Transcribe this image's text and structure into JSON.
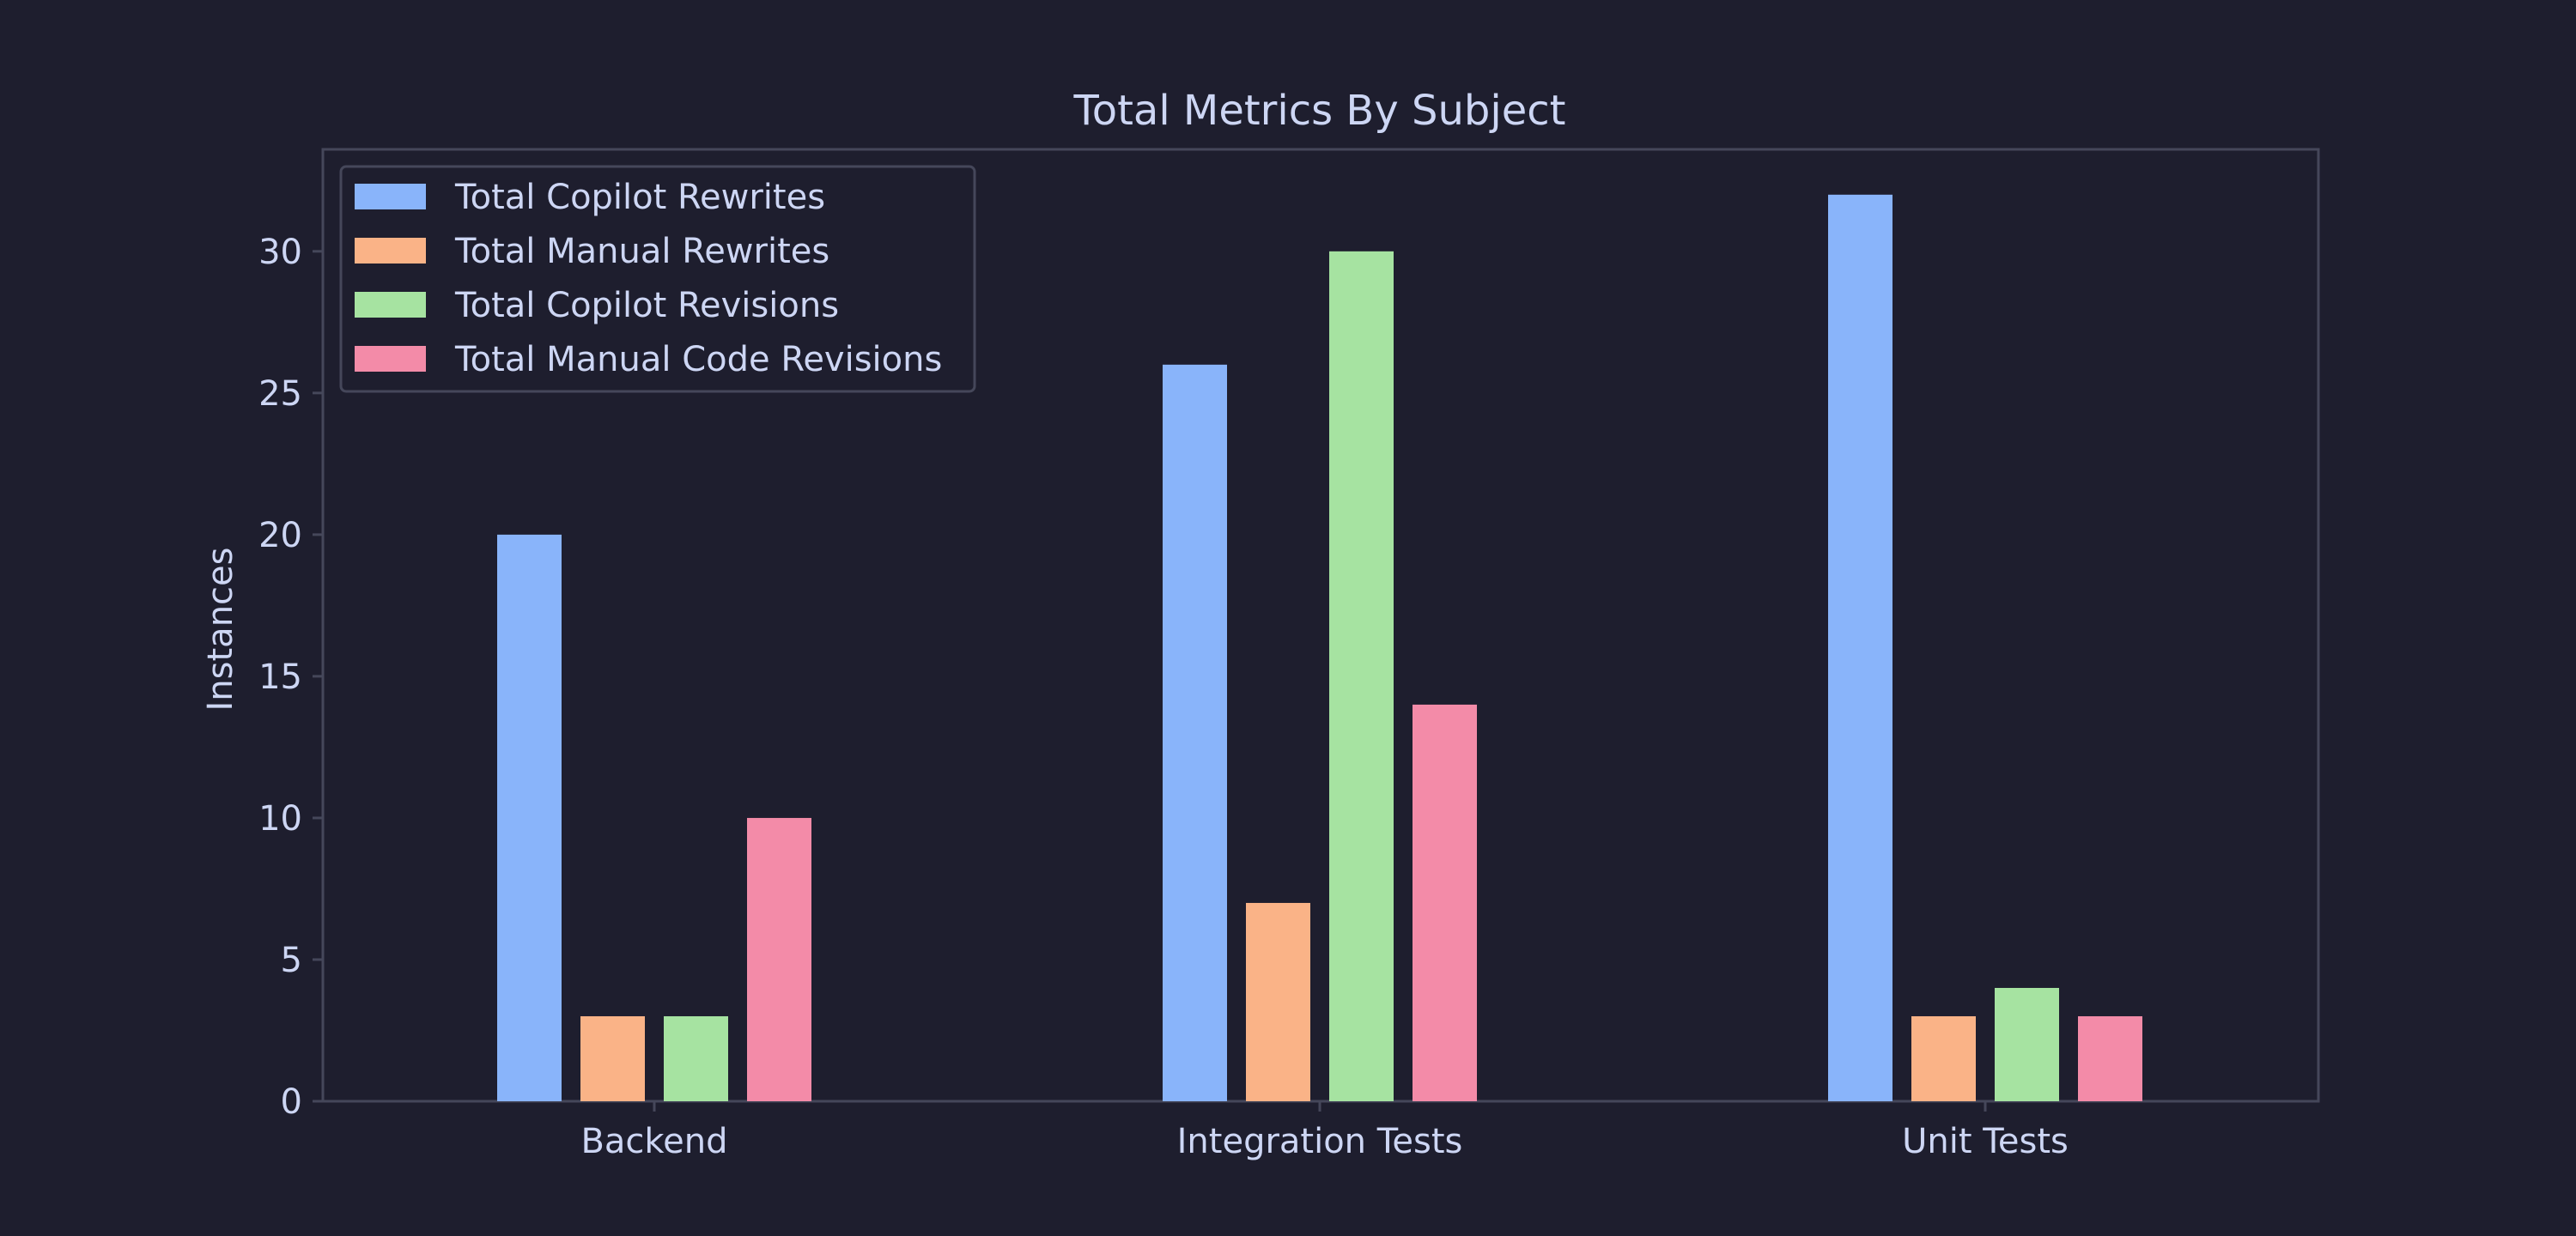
{
  "chart_data": {
    "type": "bar",
    "title": "Total Metrics By Subject",
    "xlabel": "",
    "ylabel": "Instances",
    "categories": [
      "Backend",
      "Integration Tests",
      "Unit Tests"
    ],
    "series": [
      {
        "name": "Total Copilot Rewrites",
        "color": "#89b4fa",
        "values": [
          20,
          26,
          32
        ]
      },
      {
        "name": "Total Manual Rewrites",
        "color": "#fab387",
        "values": [
          3,
          7,
          3
        ]
      },
      {
        "name": "Total Copilot Revisions",
        "color": "#a6e3a1",
        "values": [
          3,
          30,
          4
        ]
      },
      {
        "name": "Total Manual Code Revisions",
        "color": "#f38ba8",
        "values": [
          10,
          14,
          3
        ]
      }
    ],
    "ylim": [
      0,
      33.6
    ],
    "yticks": [
      0,
      5,
      10,
      15,
      20,
      25,
      30
    ],
    "legend_position": "top-left",
    "grid": false,
    "background_color": "#1e1e2e",
    "text_color": "#cdd6f4",
    "axis_color": "#45475a"
  }
}
